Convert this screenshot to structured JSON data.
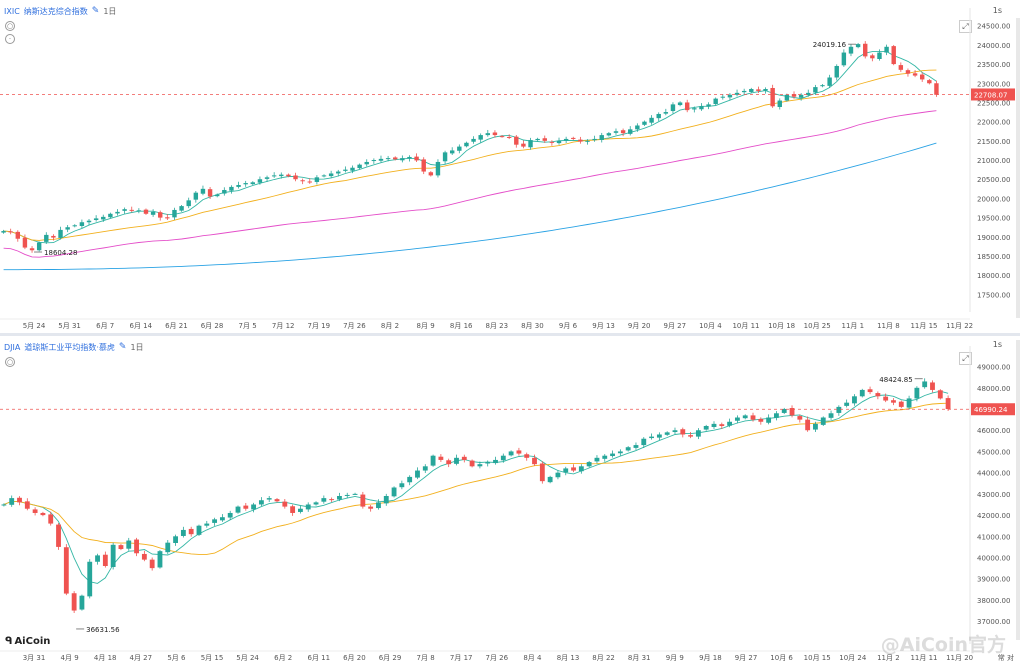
{
  "top": {
    "symbol": "IXIC",
    "name": "纳斯达克综合指数",
    "timeframe": "1日",
    "interval_label": "1s",
    "edit_icon": "edit-icon",
    "side_icons": [
      "eye-icon",
      "settings-icon"
    ],
    "expand_icon": "expand-icon",
    "up_color": "#26a69a",
    "down_color": "#ef5350",
    "ma_colors": {
      "ma5": "#35b7a5",
      "ma20": "#f2b01e",
      "ma60": "#e44ec9",
      "ma120": "#29a2e4"
    },
    "last_price_label": "22708.07",
    "high_annotation": "24019.16",
    "low_annotation": "18604.28",
    "y_ticks": [
      "24500.00",
      "24000.00",
      "23500.00",
      "23000.00",
      "22500.00",
      "22000.00",
      "21500.00",
      "21000.00",
      "20500.00",
      "20000.00",
      "19500.00",
      "19000.00",
      "18500.00",
      "18000.00",
      "17500.00"
    ],
    "x_ticks": [
      "5月 24",
      "5月 31",
      "6月 7",
      "6月 14",
      "6月 21",
      "6月 28",
      "7月 5",
      "7月 12",
      "7月 19",
      "7月 26",
      "8月 2",
      "8月 9",
      "8月 16",
      "8月 23",
      "8月 30",
      "9月 6",
      "9月 13",
      "9月 20",
      "9月 27",
      "10月 4",
      "10月 11",
      "10月 18",
      "10月 25",
      "11月 1",
      "11月 8",
      "11月 15",
      "11月 22"
    ]
  },
  "bottom": {
    "symbol": "DJIA",
    "name": "道琼斯工业平均指数·慕虎",
    "timeframe": "1日",
    "interval_label": "1s",
    "side_icons": [
      "eye-icon"
    ],
    "expand_icon": "expand-icon",
    "last_price_label": "46990.24",
    "high_annotation": "48424.85",
    "low_annotation": "36631.56",
    "y_ticks": [
      "49000.00",
      "48000.00",
      "47000.00",
      "46000.00",
      "45000.00",
      "44000.00",
      "43000.00",
      "42000.00",
      "41000.00",
      "40000.00",
      "39000.00",
      "38000.00",
      "37000.00"
    ],
    "x_ticks": [
      "3月 31",
      "4月 9",
      "4月 18",
      "4月 27",
      "5月 6",
      "5月 15",
      "5月 24",
      "6月 2",
      "6月 11",
      "6月 20",
      "6月 29",
      "7月 8",
      "7月 17",
      "7月 26",
      "8月 4",
      "8月 13",
      "8月 22",
      "8月 31",
      "9月 9",
      "9月 18",
      "9月 27",
      "10月 6",
      "10月 15",
      "10月 24",
      "11月 2",
      "11月 11",
      "11月 20"
    ],
    "scale_label": "常 对",
    "logo_text": "AiCoin",
    "watermark_text": "@AiCoin官方"
  },
  "chart_data": [
    {
      "type": "candlestick",
      "title": "IXIC 纳斯达克综合指数 1日",
      "ylim": [
        17250,
        24700
      ],
      "x_range": [
        "2025-05-21",
        "2025-11-22"
      ],
      "x_labels": [
        "5月 24",
        "5月 31",
        "6月 7",
        "6月 14",
        "6月 21",
        "6月 28",
        "7月 5",
        "7月 12",
        "7月 19",
        "7月 26",
        "8月 2",
        "8月 9",
        "8月 16",
        "8月 23",
        "8月 30",
        "9月 6",
        "9月 13",
        "9月 20",
        "9月 27",
        "10月 4",
        "10月 11",
        "10月 18",
        "10月 25",
        "11月 1",
        "11月 8",
        "11月 15",
        "11月 22"
      ],
      "close_series": [
        19150,
        19120,
        18950,
        18720,
        18650,
        18850,
        19050,
        18980,
        19180,
        19250,
        19300,
        19380,
        19420,
        19480,
        19520,
        19600,
        19650,
        19720,
        19680,
        19690,
        19600,
        19650,
        19500,
        19480,
        19700,
        19800,
        19950,
        20150,
        20250,
        20050,
        20100,
        20220,
        20300,
        20350,
        20400,
        20420,
        20500,
        20550,
        20600,
        20620,
        20580,
        20500,
        20450,
        20420,
        20550,
        20600,
        20650,
        20700,
        20750,
        20800,
        20880,
        20950,
        21000,
        21030,
        21050,
        21020,
        21050,
        21080,
        20990,
        20700,
        20600,
        20950,
        21200,
        21250,
        21350,
        21450,
        21550,
        21650,
        21700,
        21650,
        21610,
        21600,
        21400,
        21350,
        21520,
        21550,
        21500,
        21450,
        21500,
        21550,
        21550,
        21480,
        21500,
        21550,
        21650,
        21700,
        21750,
        21700,
        21800,
        21900,
        22000,
        22100,
        22200,
        22250,
        22450,
        22500,
        22300,
        22350,
        22400,
        22450,
        22600,
        22650,
        22700,
        22750,
        22800,
        22850,
        22800,
        22850,
        22400,
        22550,
        22700,
        22650,
        22700,
        22750,
        22900,
        22950,
        23150,
        23450,
        23800,
        23950,
        24020,
        23700,
        23650,
        23800,
        23950,
        23500,
        23350,
        23250,
        23200,
        23100,
        23000,
        22700
      ],
      "ma_series": [
        {
          "name": "MA5",
          "color": "#35b7a5"
        },
        {
          "name": "MA20",
          "color": "#f2b01e"
        },
        {
          "name": "MA60",
          "color": "#e44ec9"
        },
        {
          "name": "MA120",
          "color": "#29a2e4"
        }
      ],
      "annotations": [
        {
          "text": "24019.16",
          "value": 24019.16
        },
        {
          "text": "18604.28",
          "value": 18604.28
        }
      ],
      "last_price": 22708.07,
      "grid": false
    },
    {
      "type": "candlestick",
      "title": "DJIA 道琼斯工业平均指数·慕虎 1日",
      "ylim": [
        36300,
        49500
      ],
      "x_range": [
        "2025-03-27",
        "2025-11-22"
      ],
      "x_labels": [
        "3月 31",
        "4月 9",
        "4月 18",
        "4月 27",
        "5月 6",
        "5月 15",
        "5月 24",
        "6月 2",
        "6月 11",
        "6月 20",
        "6月 29",
        "7月 8",
        "7月 17",
        "7月 26",
        "8月 4",
        "8月 13",
        "8月 22",
        "8月 31",
        "9月 9",
        "9月 18",
        "9月 27",
        "10月 6",
        "10月 15",
        "10月 24",
        "11月 2",
        "11月 11",
        "11月 20"
      ],
      "close_series": [
        42500,
        42800,
        42600,
        42300,
        42100,
        42000,
        41600,
        40500,
        38300,
        37500,
        38200,
        39800,
        40100,
        39600,
        40600,
        40400,
        40800,
        40200,
        39900,
        39500,
        40300,
        40700,
        41000,
        41300,
        41100,
        41500,
        41600,
        41800,
        41900,
        42100,
        42400,
        42300,
        42500,
        42700,
        42800,
        42650,
        42400,
        42100,
        42300,
        42500,
        42600,
        42800,
        42750,
        42900,
        42950,
        43000,
        42400,
        42300,
        42600,
        42900,
        43300,
        43500,
        43800,
        44100,
        44300,
        44800,
        44600,
        44400,
        44700,
        44600,
        44300,
        44400,
        44500,
        44600,
        44800,
        45000,
        44900,
        44700,
        44400,
        43600,
        43800,
        44000,
        44200,
        44100,
        44300,
        44500,
        44700,
        44800,
        44900,
        45000,
        45200,
        45300,
        45600,
        45700,
        45800,
        45900,
        46000,
        45800,
        45700,
        46000,
        46200,
        46300,
        46200,
        46400,
        46600,
        46700,
        46500,
        46400,
        46600,
        46800,
        47000,
        46700,
        46500,
        46000,
        46300,
        46600,
        46800,
        47100,
        47300,
        47600,
        47900,
        47800,
        47600,
        47400,
        47300,
        47100,
        47500,
        48000,
        48300,
        47900,
        47500,
        47000
      ],
      "ma_series": [
        {
          "name": "MA5",
          "color": "#35b7a5"
        },
        {
          "name": "MA20",
          "color": "#f2b01e"
        }
      ],
      "annotations": [
        {
          "text": "48424.85",
          "value": 48424.85
        },
        {
          "text": "36631.56",
          "value": 36631.56
        }
      ],
      "last_price": 46990.24,
      "grid": false
    }
  ]
}
